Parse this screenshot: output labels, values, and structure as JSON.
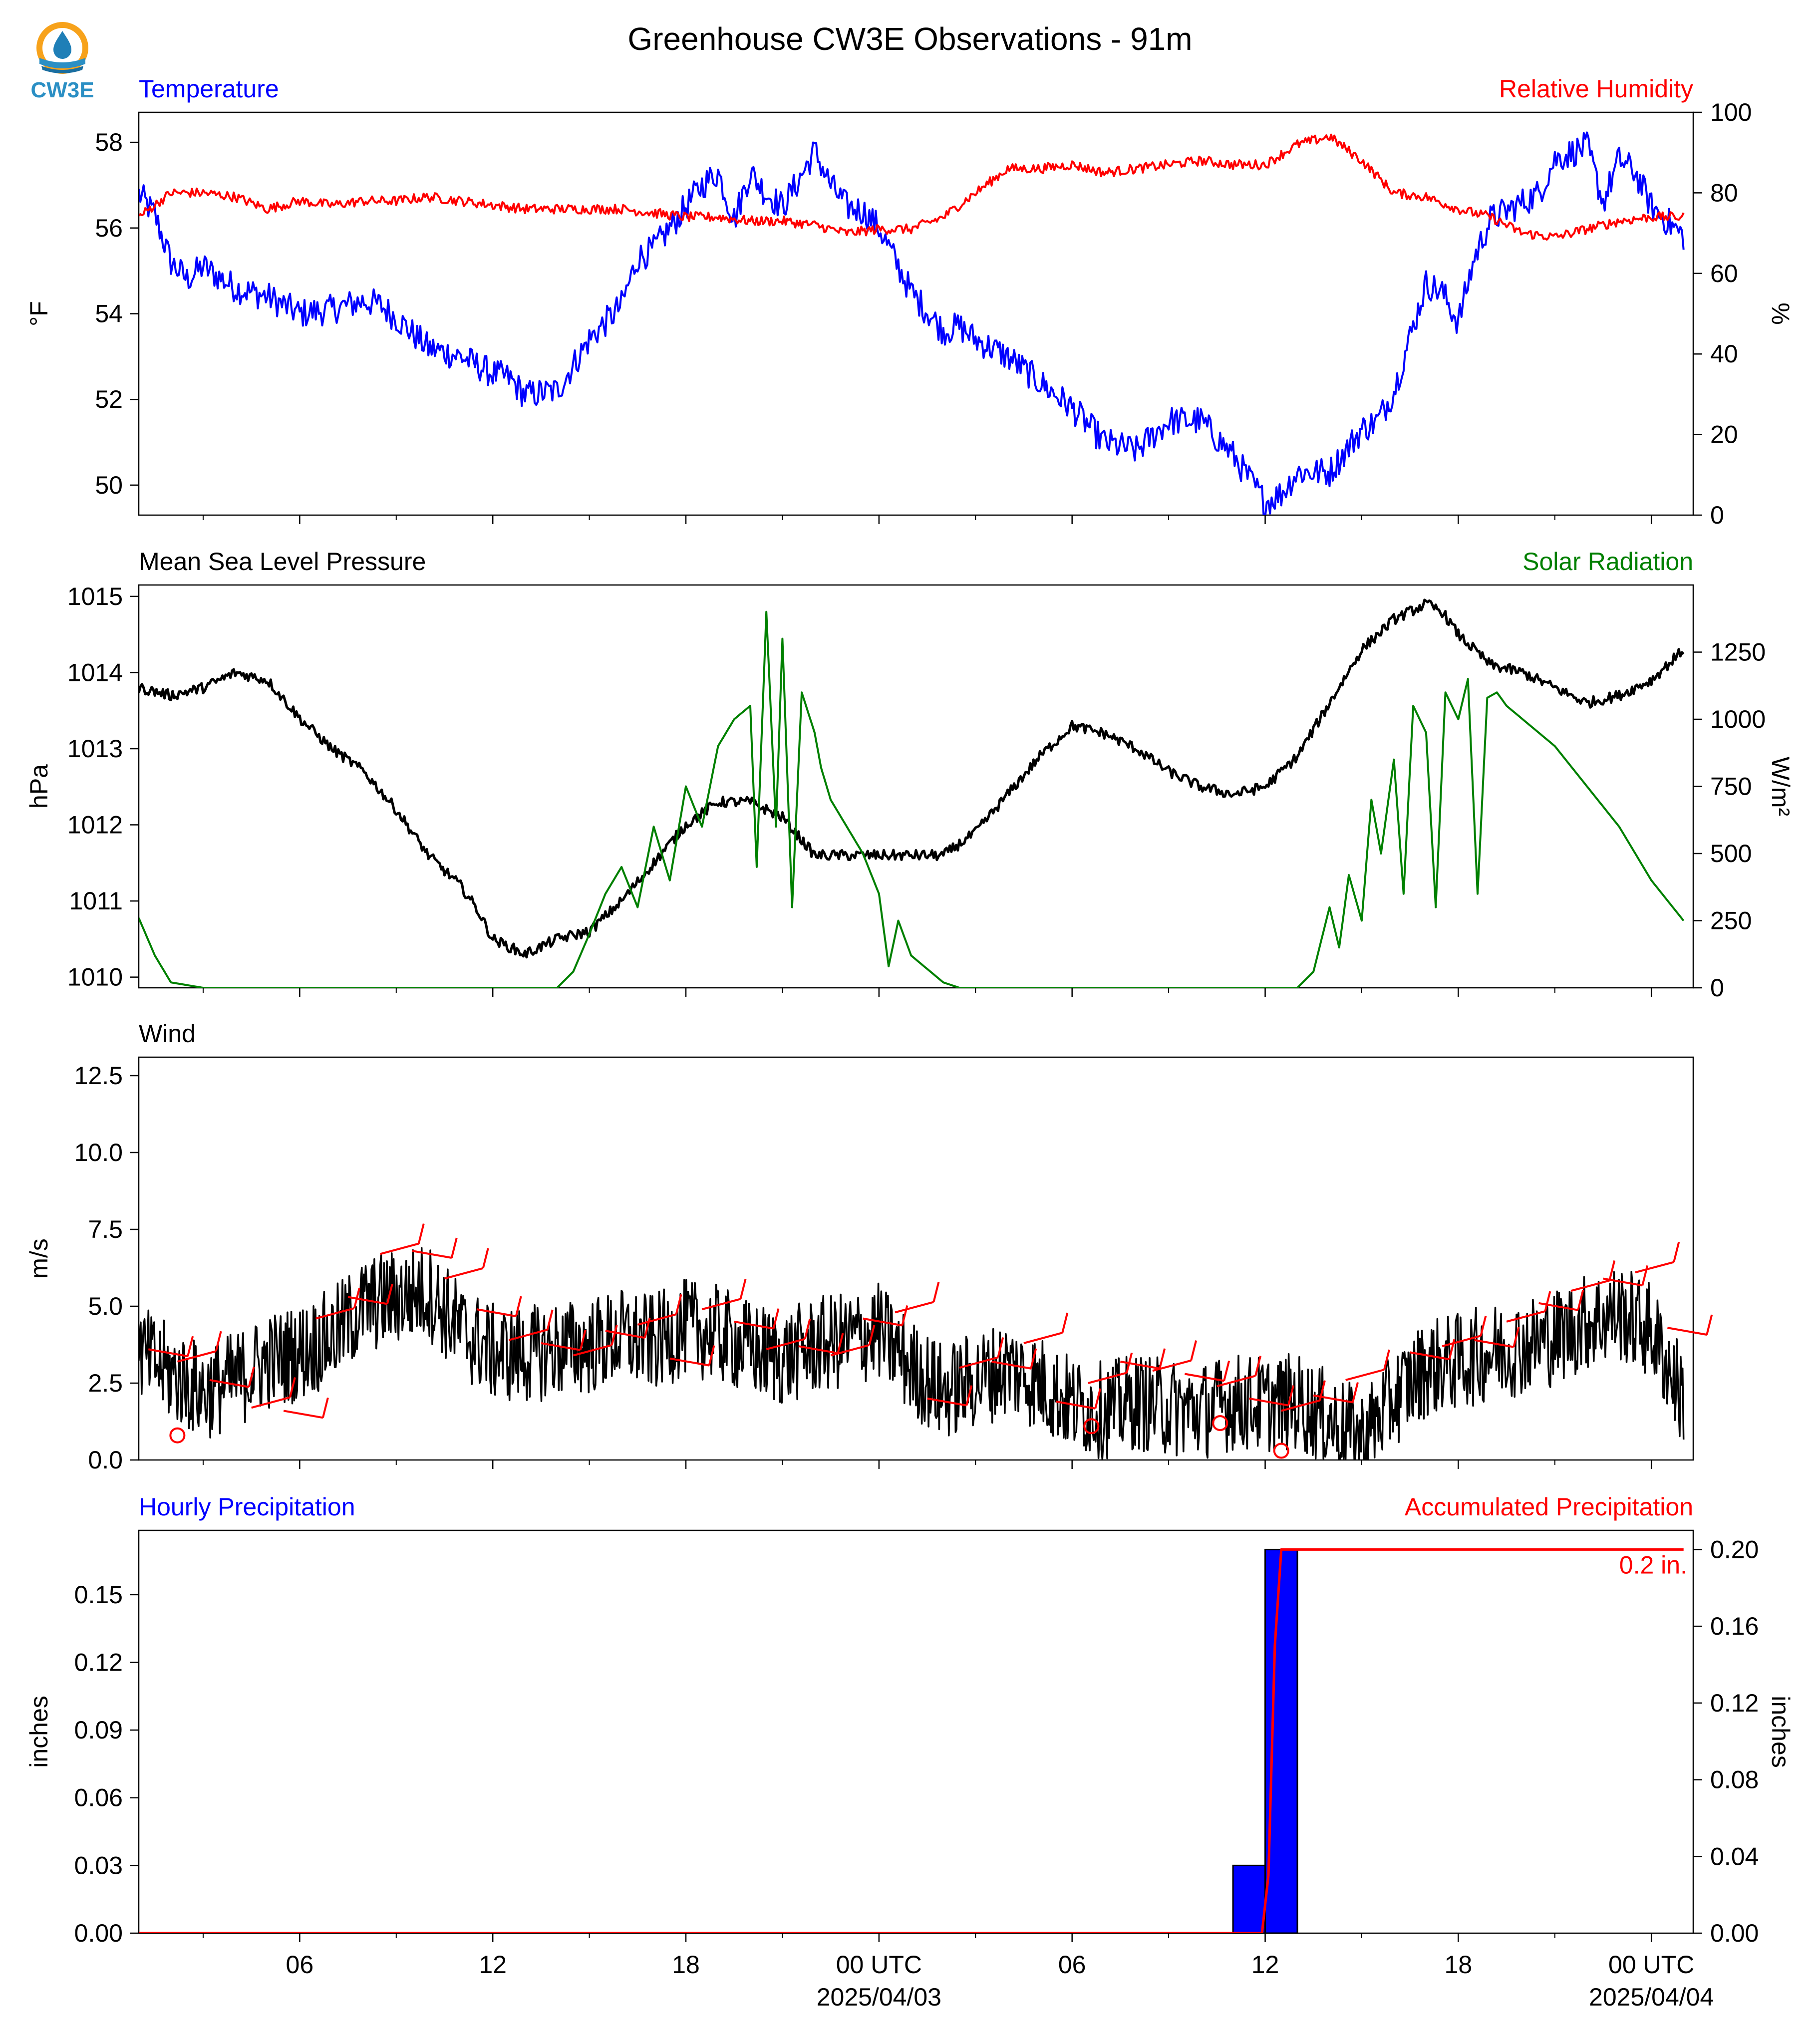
{
  "title": "Greenhouse CW3E Observations - 91m",
  "logo_text": "CW3E",
  "colors": {
    "temperature": "#0000ff",
    "humidity": "#ff0000",
    "pressure": "#000000",
    "solar": "#008000",
    "wind": "#000000",
    "barbs": "#ff0000",
    "hourly_precip": "#0000ff",
    "accum_precip": "#ff0000"
  },
  "x_axis": {
    "start": "2025-04-02 01:00 UTC",
    "end": "2025-04-04 01:00 UTC",
    "tick_labels": [
      "06",
      "12",
      "18",
      "00 UTC",
      "06",
      "12",
      "18",
      "00 UTC"
    ],
    "tick_hours": [
      5,
      11,
      17,
      23,
      29,
      35,
      41,
      47
    ],
    "date_labels": [
      "2025/04/03",
      "2025/04/04"
    ],
    "date_hours": [
      23,
      47
    ]
  },
  "chart_data": [
    {
      "type": "line",
      "panel": "temperature-humidity",
      "left_title": "Temperature",
      "right_title": "Relative Humidity",
      "ylabel_left": "°F",
      "ylabel_right": "%",
      "ylim_left": [
        49.3,
        58.7
      ],
      "ylim_right": [
        0,
        100
      ],
      "yticks_left": [
        "50",
        "52",
        "54",
        "56",
        "58"
      ],
      "yticks_right": [
        "0",
        "20",
        "40",
        "60",
        "80",
        "100"
      ],
      "series": [
        {
          "name": "Temperature",
          "axis": "left",
          "x_hours": [
            0,
            0.5,
            1,
            1.5,
            2,
            3,
            4,
            5,
            6,
            7,
            7.5,
            8,
            9,
            10,
            10.5,
            11,
            11.5,
            12,
            13,
            14,
            15,
            15.5,
            16,
            17,
            17.5,
            18,
            18.5,
            19,
            19.5,
            20,
            20.5,
            21,
            21.5,
            22,
            22.5,
            23,
            24,
            25,
            25.5,
            26,
            27,
            28,
            29,
            30,
            31,
            32,
            33,
            34,
            35,
            35.5,
            36,
            37,
            38,
            38.5,
            39,
            40,
            40.5,
            41,
            41.5,
            42,
            43,
            43.5,
            44,
            45,
            45.5,
            46,
            46.5,
            47,
            48
          ],
          "values": [
            56.8,
            56.3,
            55.2,
            54.8,
            55.1,
            54.6,
            54.4,
            54.0,
            54.1,
            54.3,
            54.2,
            53.9,
            53.2,
            53.0,
            52.8,
            52.6,
            52.5,
            52.1,
            52.2,
            53.4,
            54.2,
            55.3,
            55.5,
            56.5,
            57.0,
            57.3,
            56.2,
            57.3,
            56.8,
            56.5,
            57.1,
            57.8,
            57.0,
            56.5,
            56.4,
            56.0,
            54.5,
            53.6,
            53.7,
            53.4,
            53.0,
            52.4,
            51.8,
            51.0,
            50.8,
            51.5,
            51.5,
            50.7,
            49.6,
            49.8,
            50.3,
            50.3,
            51.3,
            51.5,
            52.2,
            54.7,
            54.5,
            53.8,
            55.3,
            56.2,
            56.6,
            56.8,
            57.6,
            57.9,
            56.6,
            57.6,
            57.3,
            56.5,
            55.8
          ]
        },
        {
          "name": "Relative Humidity",
          "axis": "right",
          "x_hours": [
            0,
            1,
            2,
            3,
            4,
            5,
            6,
            7,
            8,
            9,
            10,
            11,
            12,
            13,
            14,
            15,
            16,
            17,
            18,
            19,
            20,
            21,
            22,
            23,
            24,
            25,
            26,
            27,
            28,
            29,
            30,
            31,
            32,
            33,
            34,
            35,
            36,
            37,
            38,
            39,
            40,
            41,
            42,
            43,
            44,
            45,
            46,
            47,
            48
          ],
          "values": [
            74,
            80,
            80,
            79,
            76,
            78,
            77,
            78,
            78,
            79,
            78,
            77,
            76,
            76,
            76,
            76,
            75,
            74,
            74,
            73,
            73,
            72,
            70,
            71,
            71,
            74,
            80,
            86,
            86,
            87,
            85,
            86,
            87,
            88,
            87,
            87,
            92,
            94,
            88,
            80,
            79,
            76,
            74,
            70,
            69,
            71,
            73,
            74,
            74
          ]
        }
      ]
    },
    {
      "type": "line",
      "panel": "pressure-solar",
      "left_title": "Mean Sea Level Pressure",
      "right_title": "Solar Radiation",
      "ylabel_left": "hPa",
      "ylabel_right": "W/m²",
      "ylim_left": [
        1009.86,
        1015.15
      ],
      "ylim_right": [
        0,
        1500
      ],
      "yticks_left": [
        "1010",
        "1011",
        "1012",
        "1013",
        "1014",
        "1015"
      ],
      "yticks_right": [
        "0",
        "250",
        "500",
        "750",
        "1000",
        "1250"
      ],
      "series": [
        {
          "name": "Mean Sea Level Pressure",
          "axis": "left",
          "x_hours": [
            0,
            1,
            2,
            3,
            4,
            5,
            6,
            7,
            8,
            9,
            10,
            10.5,
            11,
            12,
            13,
            14,
            15,
            16,
            17,
            18,
            19,
            20,
            21,
            22,
            23,
            24,
            25,
            26,
            27,
            28,
            29,
            30,
            31,
            32,
            33,
            34,
            35,
            36,
            37,
            38,
            39,
            40,
            40.5,
            41,
            42,
            43,
            44,
            45,
            46,
            47,
            48
          ],
          "values": [
            1013.8,
            1013.7,
            1013.8,
            1014.0,
            1013.9,
            1013.4,
            1013.0,
            1012.7,
            1012.2,
            1011.6,
            1011.2,
            1010.9,
            1010.5,
            1010.3,
            1010.5,
            1010.6,
            1011.0,
            1011.5,
            1012.0,
            1012.3,
            1012.3,
            1012.1,
            1011.6,
            1011.6,
            1011.6,
            1011.6,
            1011.6,
            1011.9,
            1012.4,
            1012.9,
            1013.3,
            1013.2,
            1013.0,
            1012.7,
            1012.5,
            1012.4,
            1012.5,
            1012.9,
            1013.6,
            1014.3,
            1014.7,
            1014.9,
            1014.8,
            1014.5,
            1014.1,
            1014.0,
            1013.8,
            1013.6,
            1013.7,
            1013.9,
            1014.3
          ]
        },
        {
          "name": "Solar Radiation",
          "axis": "right",
          "x_hours": [
            0,
            0.5,
            1,
            2,
            8,
            12,
            13,
            13.5,
            14,
            14.5,
            15,
            15.5,
            16,
            16.5,
            17,
            17.5,
            18,
            18.5,
            19,
            19.2,
            19.5,
            19.8,
            20,
            20.3,
            20.6,
            21,
            21.2,
            21.5,
            22,
            22.5,
            23,
            23.3,
            23.6,
            24,
            25,
            25.5,
            26,
            30,
            35,
            36,
            36.5,
            37,
            37.3,
            37.6,
            38,
            38.3,
            38.6,
            39,
            39.3,
            39.6,
            40,
            40.3,
            40.6,
            41,
            41.3,
            41.6,
            41.9,
            42.2,
            42.5,
            43,
            44,
            45,
            46,
            47,
            48
          ],
          "values": [
            260,
            120,
            20,
            0,
            0,
            0,
            0,
            60,
            200,
            350,
            450,
            300,
            600,
            400,
            750,
            600,
            900,
            1000,
            1050,
            450,
            1400,
            600,
            1300,
            300,
            1100,
            950,
            820,
            700,
            600,
            500,
            350,
            80,
            250,
            120,
            20,
            0,
            0,
            0,
            0,
            0,
            60,
            300,
            150,
            420,
            250,
            700,
            500,
            850,
            350,
            1050,
            950,
            300,
            1100,
            1000,
            1150,
            350,
            1080,
            1100,
            1050,
            1000,
            900,
            750,
            600,
            400,
            250
          ]
        }
      ]
    },
    {
      "type": "line",
      "panel": "wind",
      "left_title": "Wind",
      "ylabel_left": "m/s",
      "ylim_left": [
        0,
        13.1
      ],
      "yticks_left": [
        "0.0",
        "2.5",
        "5.0",
        "7.5",
        "10.0",
        "12.5"
      ],
      "series": [
        {
          "name": "Wind",
          "axis": "left",
          "x_hours": [
            0,
            1,
            2,
            3,
            4,
            5,
            6,
            7,
            8,
            9,
            10,
            11,
            12,
            13,
            14,
            15,
            16,
            17,
            18,
            19,
            20,
            21,
            22,
            23,
            24,
            25,
            26,
            27,
            28,
            29,
            30,
            31,
            32,
            33,
            34,
            35,
            36,
            37,
            38,
            39,
            40,
            41,
            42,
            43,
            44,
            45,
            46,
            47,
            48
          ],
          "values": [
            3.5,
            2.8,
            2.2,
            2.6,
            3.2,
            3.5,
            4.0,
            5.0,
            5.3,
            5.5,
            4.2,
            3.5,
            3.4,
            3.6,
            3.7,
            4.0,
            3.8,
            4.3,
            4.1,
            3.6,
            3.3,
            3.7,
            3.9,
            4.2,
            3.0,
            2.2,
            2.6,
            3.0,
            2.5,
            1.8,
            1.6,
            1.9,
            1.7,
            1.6,
            1.9,
            1.8,
            1.9,
            1.3,
            0.7,
            2.0,
            3.0,
            3.2,
            3.5,
            3.7,
            4.0,
            4.5,
            4.8,
            4.2,
            2.0
          ]
        }
      ]
    },
    {
      "type": "bar",
      "panel": "precipitation",
      "left_title": "Hourly Precipitation",
      "right_title": "Accumulated Precipitation",
      "ylabel_left": "inches",
      "ylabel_right": "inches",
      "ylim_left": [
        0,
        0.1785
      ],
      "ylim_right": [
        0,
        0.21
      ],
      "yticks_left": [
        "0.00",
        "0.03",
        "0.06",
        "0.09",
        "0.12",
        "0.15"
      ],
      "yticks_right": [
        "0.00",
        "0.04",
        "0.08",
        "0.12",
        "0.16",
        "0.20"
      ],
      "accum_label": "0.2 in.",
      "bars": [
        {
          "start_hour": 34,
          "end_hour": 35,
          "value": 0.03
        },
        {
          "start_hour": 35,
          "end_hour": 36,
          "value": 0.17
        }
      ],
      "series": [
        {
          "name": "Accumulated Precipitation",
          "axis": "right",
          "x_hours": [
            0,
            34.9,
            35.1,
            35.3,
            35.5,
            48
          ],
          "values": [
            0,
            0,
            0.03,
            0.15,
            0.2,
            0.2
          ]
        }
      ]
    }
  ]
}
